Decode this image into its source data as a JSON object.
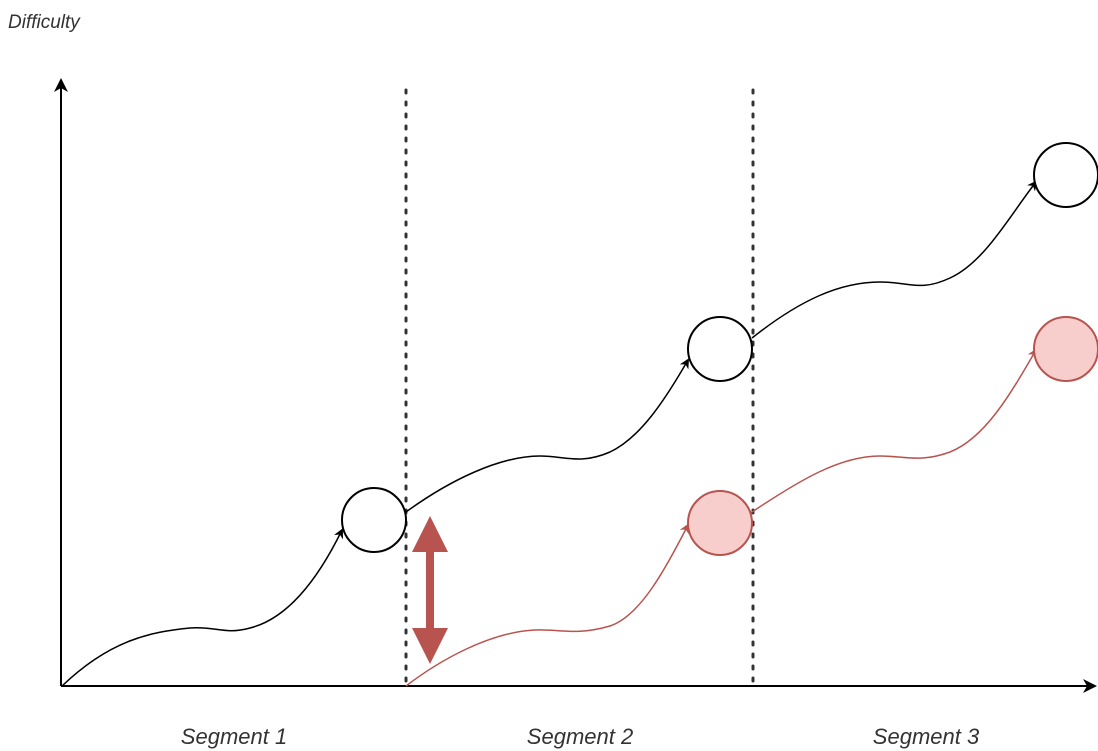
{
  "y_axis_label": "Difficulty",
  "segments": [
    {
      "label": "Segment 1"
    },
    {
      "label": "Segment 2"
    },
    {
      "label": "Segment 3"
    }
  ],
  "colors": {
    "axis": "#000000",
    "black_path": "#000000",
    "black_node_fill": "#ffffff",
    "red_path": "#b85450",
    "red_node_fill": "#f8cecc",
    "red_node_stroke": "#b85450",
    "gap_arrow": "#b85450",
    "divider": "#333333"
  }
}
